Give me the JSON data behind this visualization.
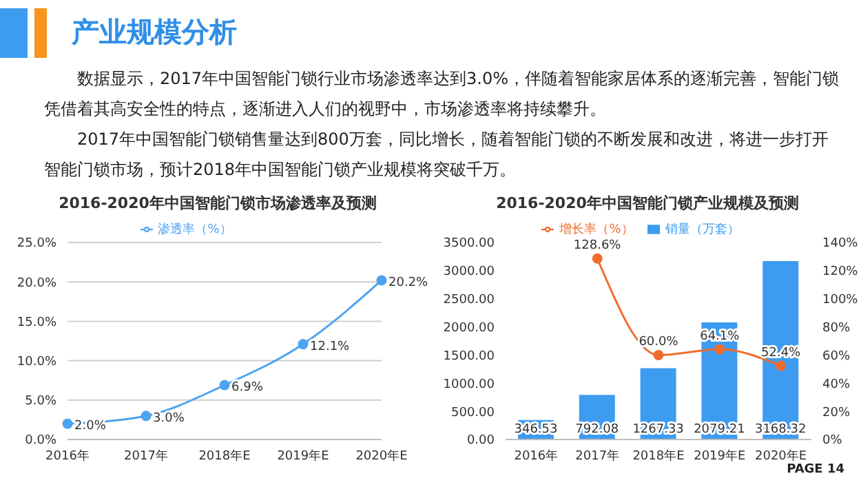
{
  "chart_data": [
    {
      "type": "other",
      "title": "产业规模分析",
      "annotations": [
        "数据显示，2017年中国智能门锁行业市场渗透率达到3.0%，伴随着智能家居体系的逐渐完善，智能门锁凭借着其高安全性的特点，逐渐进入人们的视野中，市场渗透率将持续攀升。",
        "2017年中国智能门锁销售量达到800万套，同比增长，随着智能门锁的不断发展和改进，将进一步打开智能门锁市场，预计2018年中国智能门锁产业规模将突破千万。"
      ]
    },
    {
      "type": "line",
      "title": "2016-2020年中国智能门锁市场渗透率及预测",
      "categories": [
        "2016年",
        "2017年",
        "2018年E",
        "2019年E",
        "2020年E"
      ],
      "series": [
        {
          "name": "渗透率（%）",
          "color": "#4da3f0",
          "values": [
            2.0,
            3.0,
            6.9,
            12.1,
            20.2
          ],
          "value_labels": [
            "2.0%",
            "3.0%",
            "6.9%",
            "12.1%",
            "20.2%"
          ]
        }
      ],
      "ylim": [
        0,
        25
      ],
      "yticks": [
        {
          "value": 0,
          "label": "0.0%"
        },
        {
          "value": 5,
          "label": "5.0%"
        },
        {
          "value": 10,
          "label": "10.0%"
        },
        {
          "value": 15,
          "label": "15.0%"
        },
        {
          "value": 20,
          "label": "20.0%"
        },
        {
          "value": 25,
          "label": "25.0%"
        }
      ],
      "grid": "y",
      "legend": "top",
      "marker": "circle"
    },
    {
      "type": "bar",
      "title": "2016-2020年中国智能门锁产业规模及预测",
      "categories": [
        "2016年",
        "2017年",
        "2018年E",
        "2019年E",
        "2020年E"
      ],
      "series": [
        {
          "name": "销量（万套）",
          "color": "#3d9cf0",
          "values": [
            346.53,
            792.08,
            1267.33,
            2079.21,
            3168.32
          ],
          "value_labels": [
            "346.53",
            "792.08",
            "1267.33",
            "2079.21",
            "3168.32"
          ]
        },
        {
          "name": "增长率（%）",
          "type": "line",
          "axis": "y2",
          "color": "#f26b2e",
          "values": [
            null,
            128.6,
            60.0,
            64.1,
            52.4
          ],
          "value_labels": [
            null,
            "128.6%",
            "60.0%",
            "64.1%",
            "52.4%"
          ]
        }
      ],
      "ylim": [
        0,
        3500
      ],
      "yticks": [
        {
          "value": 0,
          "label": "0.00"
        },
        {
          "value": 500,
          "label": "500.00"
        },
        {
          "value": 1000,
          "label": "1000.00"
        },
        {
          "value": 1500,
          "label": "1500.00"
        },
        {
          "value": 2000,
          "label": "2000.00"
        },
        {
          "value": 2500,
          "label": "2500.00"
        },
        {
          "value": 3000,
          "label": "3000.00"
        },
        {
          "value": 3500,
          "label": "3500.00"
        }
      ],
      "y2lim": [
        0,
        140
      ],
      "y2ticks": [
        {
          "value": 0,
          "label": "0%"
        },
        {
          "value": 20,
          "label": "20%"
        },
        {
          "value": 40,
          "label": "40%"
        },
        {
          "value": 60,
          "label": "60%"
        },
        {
          "value": 80,
          "label": "80%"
        },
        {
          "value": 100,
          "label": "100%"
        },
        {
          "value": 120,
          "label": "120%"
        },
        {
          "value": 140,
          "label": "140%"
        }
      ],
      "grid": false,
      "legend": "top",
      "marker": "circle",
      "annotations": [
        "PAGE 14"
      ]
    }
  ]
}
